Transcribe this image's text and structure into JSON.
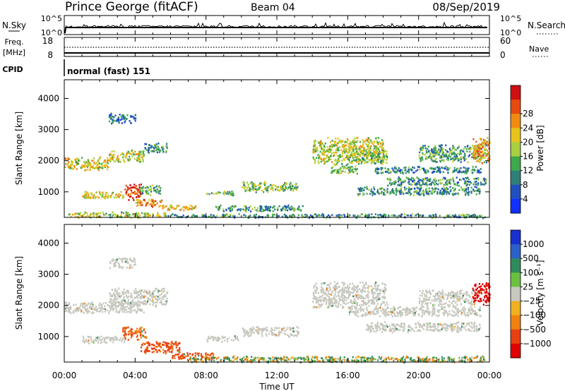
{
  "header": {
    "title": "Prince George (fitACF)",
    "beam": "Beam 04",
    "date": "08/Sep/2019"
  },
  "nsky_panel": {
    "left_label": "N.Sky",
    "right_label": "N.Search",
    "left_ticks": [
      "10^5",
      "10^0"
    ],
    "right_ticks": [
      "10^5",
      "10^0"
    ]
  },
  "freq_panel": {
    "left_label": "Freq.",
    "left_unit": "[MHz]",
    "left_ticks": [
      "18",
      "8"
    ],
    "right_label": "Nave",
    "right_ticks": [
      "60",
      "0"
    ]
  },
  "cpid_panel": {
    "label": "CPID",
    "value": "normal (fast) 151"
  },
  "chart_data": [
    {
      "type": "heatmap",
      "parameter": "power",
      "ylabel": "Slant Range [km]",
      "xlabel": "",
      "ylim": [
        180,
        4600
      ],
      "yticks": [
        "1000",
        "2000",
        "3000",
        "4000"
      ],
      "xlim_hours": [
        0,
        24
      ],
      "colorbar": {
        "label": "Power [dB]",
        "ticks": [
          "4",
          "8",
          "12",
          "16",
          "20",
          "24",
          "28"
        ],
        "colors": [
          "#1030ff",
          "#2050c0",
          "#2e7f7a",
          "#3ea84b",
          "#a8d040",
          "#e7c31c",
          "#f08c10",
          "#e84a10",
          "#d01010"
        ]
      },
      "regions": [
        {
          "t0": 0.2,
          "t1": 5.8,
          "r0": 180,
          "r1": 380,
          "level": 0.5
        },
        {
          "t0": 5.8,
          "t1": 23.8,
          "r0": 180,
          "r1": 320,
          "level": 0.3
        },
        {
          "t0": 0.0,
          "t1": 2.5,
          "r0": 1700,
          "r1": 2150,
          "level": 0.6
        },
        {
          "t0": 2.5,
          "t1": 4.5,
          "r0": 1950,
          "r1": 2400,
          "level": 0.55
        },
        {
          "t0": 4.5,
          "t1": 5.8,
          "r0": 2250,
          "r1": 2600,
          "level": 0.3
        },
        {
          "t0": 1.0,
          "t1": 3.4,
          "r0": 800,
          "r1": 1050,
          "level": 0.6
        },
        {
          "t0": 3.4,
          "t1": 4.3,
          "r0": 750,
          "r1": 1300,
          "level": 0.95
        },
        {
          "t0": 4.2,
          "t1": 5.4,
          "r0": 900,
          "r1": 1250,
          "level": 0.35
        },
        {
          "t0": 4.0,
          "t1": 5.5,
          "r0": 520,
          "r1": 820,
          "level": 0.75
        },
        {
          "t0": 5.5,
          "t1": 7.5,
          "r0": 420,
          "r1": 620,
          "level": 0.7
        },
        {
          "t0": 8.0,
          "t1": 9.5,
          "r0": 900,
          "r1": 1050,
          "level": 0.45
        },
        {
          "t0": 10.0,
          "t1": 13.2,
          "r0": 1000,
          "r1": 1350,
          "level": 0.45
        },
        {
          "t0": 8.5,
          "t1": 13.5,
          "r0": 380,
          "r1": 600,
          "level": 0.3
        },
        {
          "t0": 2.5,
          "t1": 4.0,
          "r0": 3200,
          "r1": 3550,
          "level": 0.2
        },
        {
          "t0": 14.0,
          "t1": 18.0,
          "r0": 1900,
          "r1": 2800,
          "level": 0.55
        },
        {
          "t0": 15.0,
          "t1": 16.5,
          "r0": 1600,
          "r1": 1950,
          "level": 0.4
        },
        {
          "t0": 16.0,
          "t1": 18.2,
          "r0": 1900,
          "r1": 2450,
          "level": 0.45
        },
        {
          "t0": 18.2,
          "t1": 23.8,
          "r0": 1200,
          "r1": 1500,
          "level": 0.3
        },
        {
          "t0": 17.5,
          "t1": 23.5,
          "r0": 1600,
          "r1": 1850,
          "level": 0.25
        },
        {
          "t0": 20.0,
          "t1": 23.8,
          "r0": 1950,
          "r1": 2550,
          "level": 0.35
        },
        {
          "t0": 23.0,
          "t1": 24.0,
          "r0": 1900,
          "r1": 2800,
          "level": 0.7
        },
        {
          "t0": 16.5,
          "t1": 23.5,
          "r0": 900,
          "r1": 1200,
          "level": 0.3
        }
      ]
    },
    {
      "type": "heatmap",
      "parameter": "velocity",
      "ylabel": "Slant Range [km]",
      "xlabel": "Time UT",
      "ylim": [
        180,
        4600
      ],
      "yticks": [
        "1000",
        "2000",
        "3000",
        "4000"
      ],
      "xticks": [
        "00:00",
        "04:00",
        "08:00",
        "12:00",
        "16:00",
        "20:00",
        "00:00"
      ],
      "xlim_hours": [
        0,
        24
      ],
      "colorbar": {
        "label": "Velocity [m s⁻¹]",
        "ticks": [
          "1000",
          "500",
          "100",
          "25",
          "−25",
          "−100",
          "−500",
          "−1000"
        ],
        "colors": [
          "#1830d0",
          "#2a60c8",
          "#2e8c5a",
          "#6cc040",
          "#c8c8c0",
          "#f0b020",
          "#f08010",
          "#e84010",
          "#e00000"
        ]
      },
      "regions": [
        {
          "t0": 0.0,
          "t1": 4.5,
          "r0": 1750,
          "r1": 2150,
          "vel": 0
        },
        {
          "t0": 2.5,
          "t1": 5.8,
          "r0": 1950,
          "r1": 2600,
          "vel": 0
        },
        {
          "t0": 1.0,
          "t1": 3.4,
          "r0": 800,
          "r1": 1050,
          "vel": 0
        },
        {
          "t0": 3.2,
          "t1": 4.6,
          "r0": 900,
          "r1": 1350,
          "vel": -300
        },
        {
          "t0": 4.3,
          "t1": 6.5,
          "r0": 450,
          "r1": 900,
          "vel": -400
        },
        {
          "t0": 6.0,
          "t1": 8.5,
          "r0": 250,
          "r1": 500,
          "vel": -400
        },
        {
          "t0": 8.0,
          "t1": 9.8,
          "r0": 850,
          "r1": 1050,
          "vel": 0
        },
        {
          "t0": 10.0,
          "t1": 13.2,
          "r0": 1000,
          "r1": 1350,
          "vel": 0
        },
        {
          "t0": 7.0,
          "t1": 23.8,
          "r0": 180,
          "r1": 400,
          "vel": 50
        },
        {
          "t0": 14.0,
          "t1": 18.2,
          "r0": 1900,
          "r1": 2800,
          "vel": 0
        },
        {
          "t0": 16.0,
          "t1": 23.5,
          "r0": 1650,
          "r1": 2000,
          "vel": 0
        },
        {
          "t0": 17.0,
          "t1": 23.5,
          "r0": 1150,
          "r1": 1500,
          "vel": 0
        },
        {
          "t0": 20.0,
          "t1": 23.0,
          "r0": 1950,
          "r1": 2550,
          "vel": 0
        },
        {
          "t0": 23.0,
          "t1": 24.0,
          "r0": 2000,
          "r1": 2800,
          "vel": -900
        },
        {
          "t0": 2.5,
          "t1": 4.0,
          "r0": 3200,
          "r1": 3550,
          "vel": 0
        }
      ]
    }
  ]
}
